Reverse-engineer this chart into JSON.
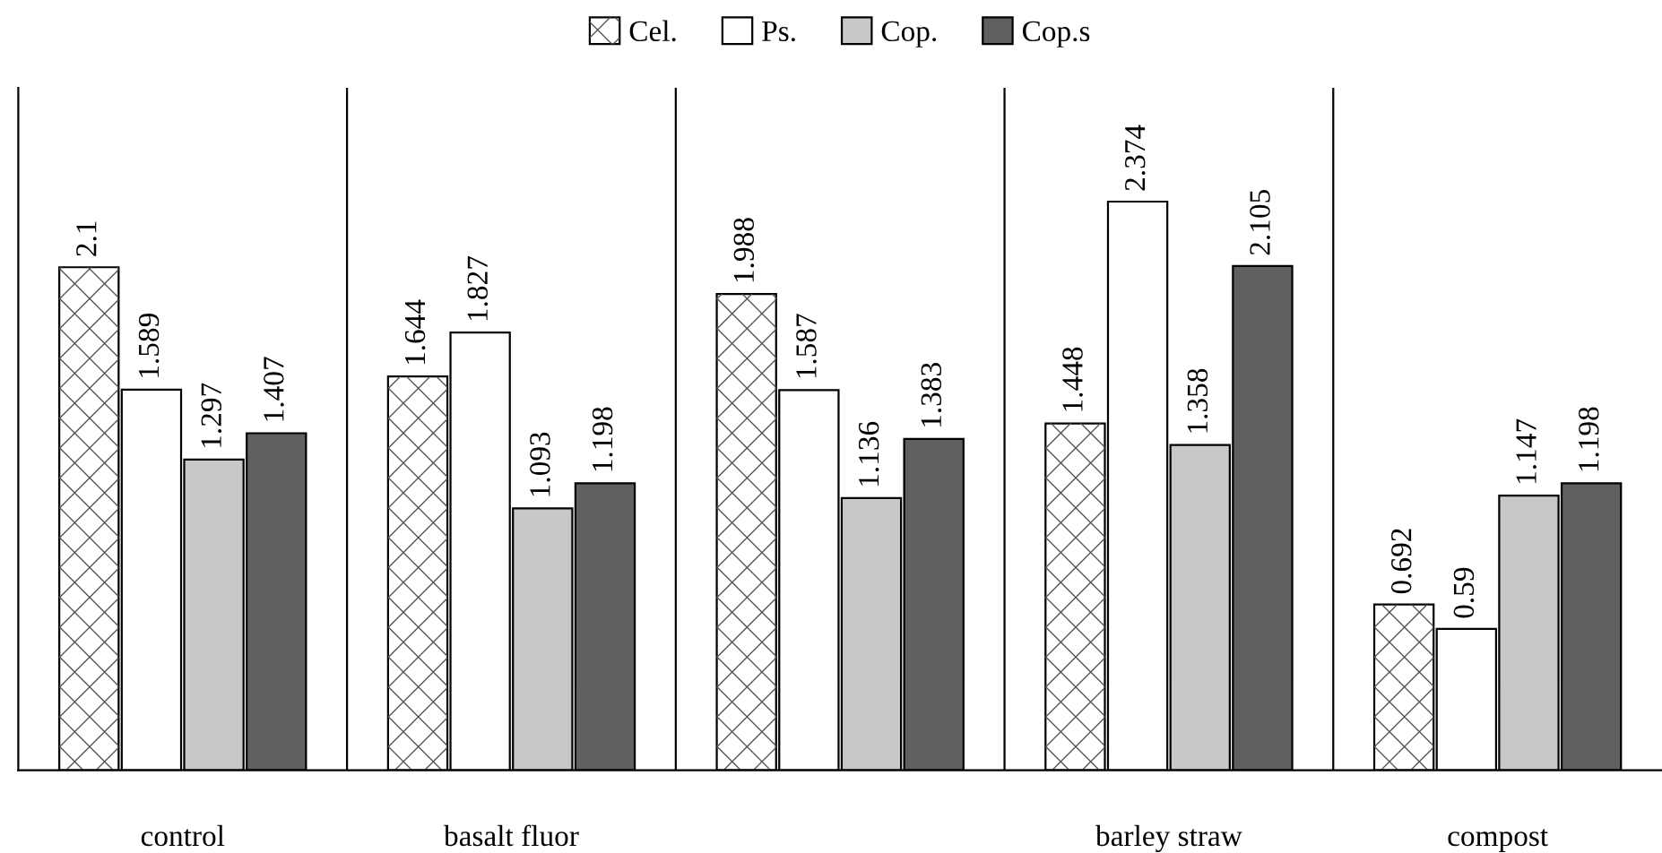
{
  "chart_data": {
    "type": "bar",
    "categories": [
      "control",
      "basalt fluor",
      null,
      "barley straw",
      "compost"
    ],
    "series": [
      {
        "name": "Cel.",
        "color": "#ffffff",
        "values": [
          2.1,
          1.644,
          1.988,
          1.448,
          0.692
        ]
      },
      {
        "name": "Ps.",
        "color": "#ffffff",
        "values": [
          1.589,
          1.827,
          1.587,
          2.374,
          0.59
        ]
      },
      {
        "name": "Cop.",
        "color": "#c8c8c8",
        "values": [
          1.297,
          1.093,
          1.136,
          1.358,
          1.147
        ]
      },
      {
        "name": "Cop.s",
        "color": "#606060",
        "values": [
          1.407,
          1.198,
          1.383,
          2.105,
          1.198
        ]
      }
    ],
    "data_labels": true,
    "legend": "top",
    "grid": false
  }
}
